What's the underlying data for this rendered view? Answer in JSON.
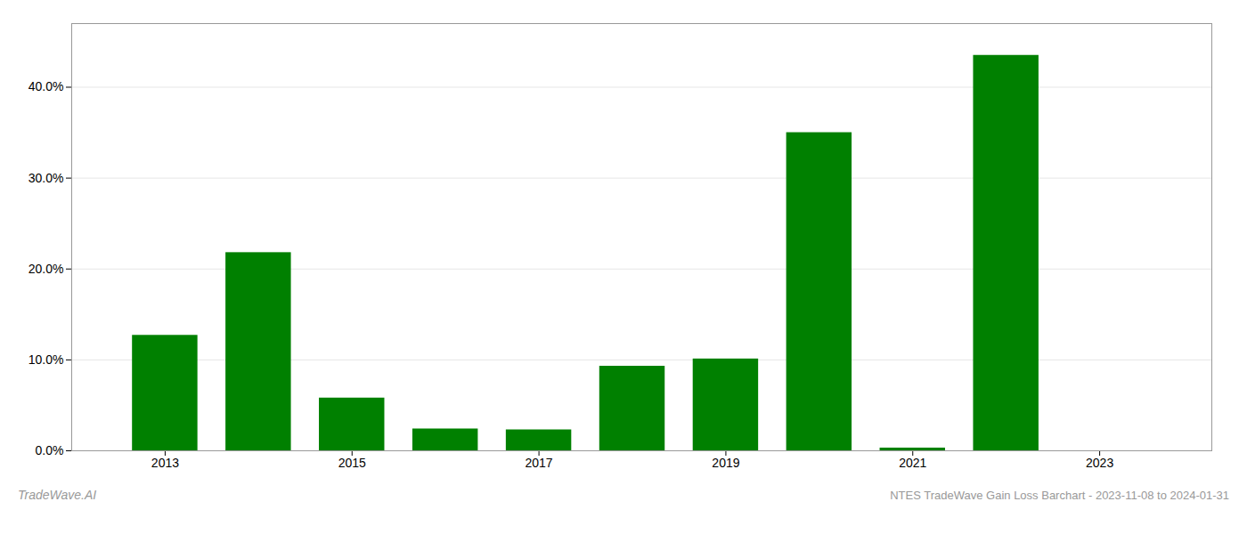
{
  "chart_data": {
    "type": "bar",
    "title": "NTES TradeWave Gain Loss Barchart - 2023-11-08 to 2024-01-31",
    "annotations": [
      "TradeWave.AI"
    ],
    "x": [
      2013,
      2014,
      2015,
      2016,
      2017,
      2018,
      2019,
      2020,
      2021,
      2022,
      2023
    ],
    "values": [
      0.127,
      0.218,
      0.058,
      0.024,
      0.023,
      0.093,
      0.101,
      0.35,
      0.003,
      0.435,
      0.0
    ],
    "color": "#008000",
    "xlim": [
      2012.0,
      2024.2
    ],
    "xticks": [
      2013,
      2015,
      2017,
      2019,
      2021,
      2023
    ],
    "ylim": [
      0,
      0.47
    ],
    "yticks": [
      {
        "value": 0.0,
        "label": "0.0%"
      },
      {
        "value": 0.1,
        "label": "10.0%"
      },
      {
        "value": 0.2,
        "label": "20.0%"
      },
      {
        "value": 0.3,
        "label": "30.0%"
      },
      {
        "value": 0.4,
        "label": "40.0%"
      }
    ],
    "grid": true
  }
}
